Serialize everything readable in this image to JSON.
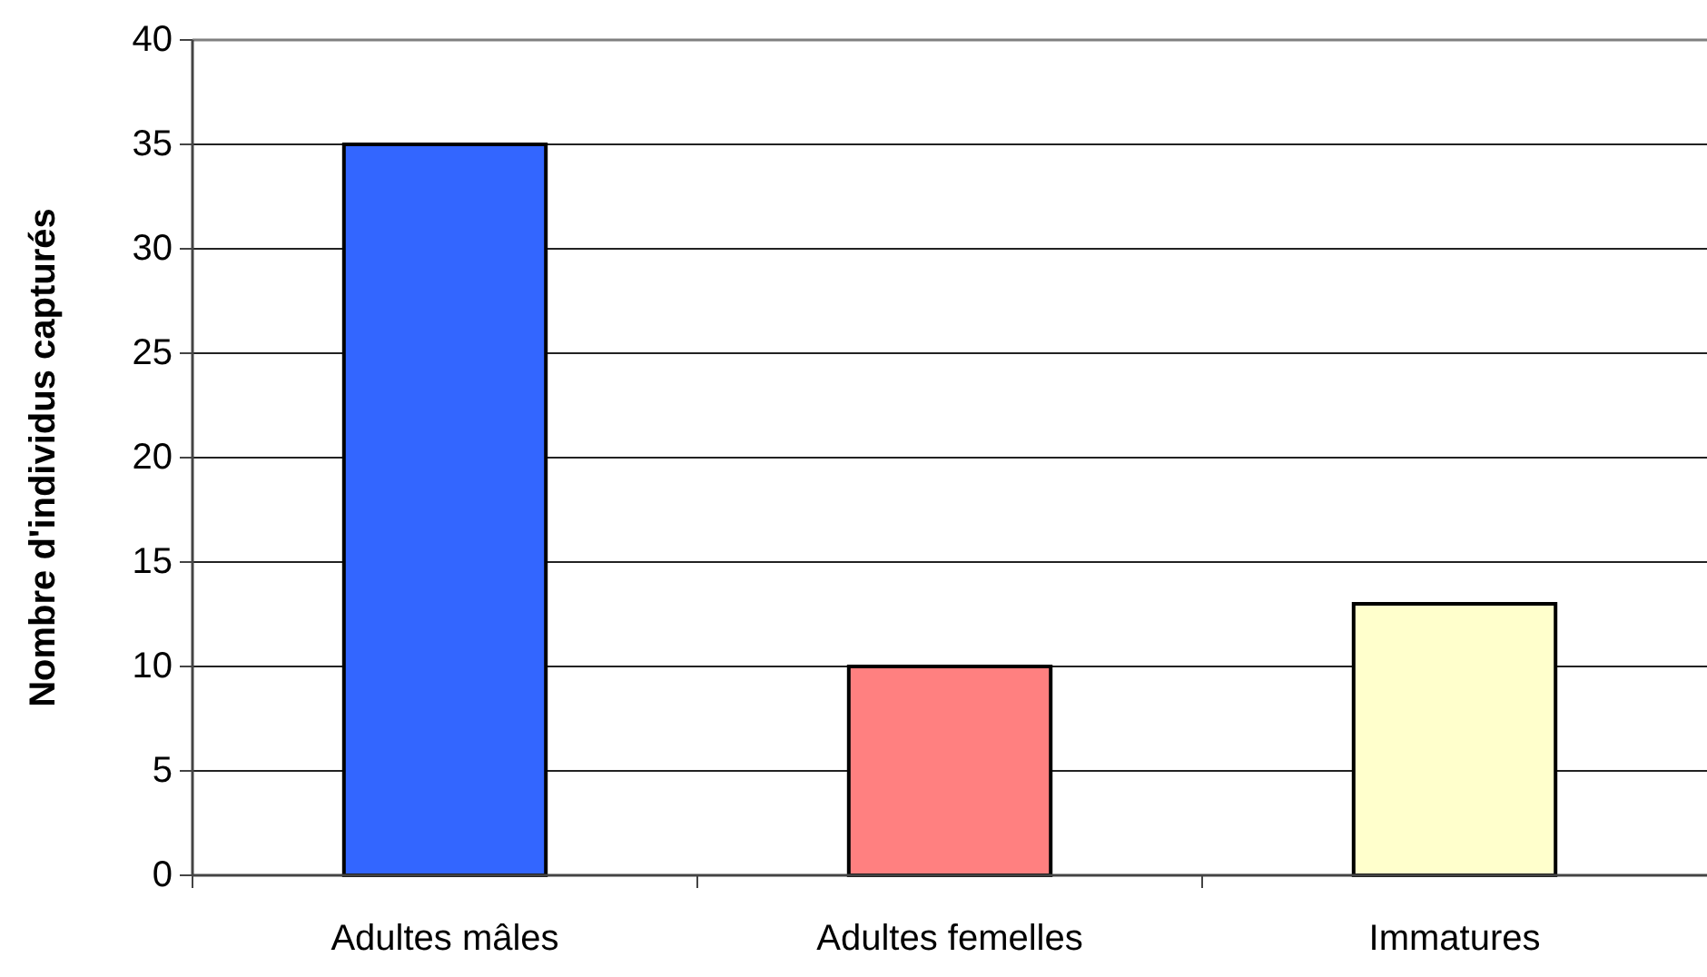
{
  "chart_data": {
    "type": "bar",
    "ylabel": "Nombre d'individus capturés",
    "categories": [
      "Adultes mâles",
      "Adultes femelles",
      "Immatures"
    ],
    "values": [
      35,
      10,
      13
    ],
    "colors": [
      "#3366ff",
      "#ff8080",
      "#ffffcc"
    ],
    "ylim": [
      0,
      40
    ],
    "yticks": [
      0,
      5,
      10,
      15,
      20,
      25,
      30,
      35,
      40
    ],
    "grid": "y"
  }
}
